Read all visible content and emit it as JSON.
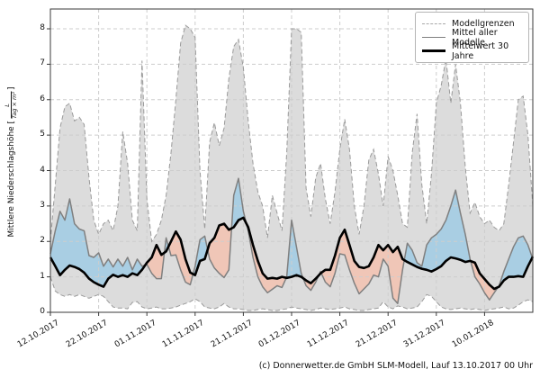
{
  "chart": {
    "footer": "(c) Donnerwetter.de GmbH SLM-Modell, Lauf 13.10.2017 00 Uhr",
    "ylabel": {
      "prefix": "Mittlere Niederschlagshöhe [",
      "frac_num": "L",
      "frac_den": "Tag × m²",
      "suffix": "]"
    },
    "legend": {
      "items": [
        {
          "label": "Modellgrenzen"
        },
        {
          "label": "Mittel aller Modelle"
        },
        {
          "label": "Mittelwert 30 Jahre"
        }
      ]
    },
    "colors": {
      "envelope_fill": "#dcdcdc",
      "envelope_edge": "#9a9a9a",
      "above_normal_fill": "#a3cce3",
      "below_normal_fill": "#f2c3b2",
      "model_mean_line": "#7f7f7f",
      "normal_line": "#000000",
      "grid": "#cdcdcd",
      "spine": "#3a3a3a"
    }
  },
  "chart_data": {
    "type": "area",
    "title": "",
    "xlabel": "",
    "ylabel": "Mittlere Niederschlagshöhe [L/(Tag × m²)]",
    "grid": "dashed-both-axes",
    "legend_position": "upper-right",
    "ylim": [
      0,
      8.56
    ],
    "y_ticks": [
      0,
      1,
      2,
      3,
      4,
      5,
      6,
      7,
      8
    ],
    "xlim_days": [
      0,
      100
    ],
    "x_tick_days": [
      0,
      10,
      20,
      30,
      40,
      50,
      60,
      70,
      80,
      90
    ],
    "x_tick_labels": [
      "12.10.2017",
      "22.10.2017",
      "01.11.2017",
      "11.11.2017",
      "21.11.2017",
      "01.12.2017",
      "11.12.2017",
      "21.12.2017",
      "31.12.2017",
      "10.01.2018"
    ],
    "x_resolution": "daily, day 0 = 12.10.2017, day 100 = 20.01.2018",
    "series": [
      {
        "name": "Modellgrenzen (oben)",
        "role": "upper-bound",
        "values": [
          2.0,
          3.6,
          5.2,
          5.8,
          5.9,
          5.4,
          5.5,
          5.3,
          3.8,
          2.6,
          2.2,
          2.5,
          2.6,
          2.3,
          3.0,
          5.1,
          4.2,
          2.6,
          2.3,
          7.1,
          3.2,
          2.0,
          2.2,
          2.6,
          3.3,
          4.5,
          6.0,
          7.6,
          8.1,
          8.0,
          7.75,
          4.0,
          2.35,
          4.8,
          5.35,
          4.7,
          5.2,
          6.6,
          7.5,
          7.7,
          6.9,
          5.4,
          4.2,
          3.4,
          3.0,
          2.1,
          3.3,
          2.8,
          2.3,
          4.5,
          8.0,
          8.0,
          7.9,
          3.5,
          2.7,
          3.8,
          4.2,
          3.2,
          2.5,
          3.4,
          4.6,
          5.45,
          4.6,
          3.0,
          2.2,
          3.0,
          4.3,
          4.6,
          3.9,
          3.0,
          4.4,
          4.0,
          3.3,
          2.5,
          2.4,
          4.5,
          5.6,
          3.6,
          2.5,
          3.9,
          5.9,
          6.4,
          7.15,
          5.9,
          7.0,
          5.9,
          4.1,
          2.8,
          3.1,
          2.7,
          2.5,
          2.6,
          2.4,
          2.3,
          2.5,
          3.6,
          4.8,
          6.0,
          6.1,
          5.0,
          3.0
        ]
      },
      {
        "name": "Modellgrenzen (unten)",
        "role": "lower-bound",
        "values": [
          1.0,
          0.6,
          0.5,
          0.45,
          0.5,
          0.45,
          0.5,
          0.45,
          0.4,
          0.45,
          0.5,
          0.45,
          0.3,
          0.15,
          0.12,
          0.12,
          0.1,
          0.28,
          0.3,
          0.15,
          0.1,
          0.12,
          0.15,
          0.1,
          0.1,
          0.12,
          0.15,
          0.2,
          0.25,
          0.3,
          0.38,
          0.3,
          0.15,
          0.12,
          0.1,
          0.15,
          0.25,
          0.15,
          0.1,
          0.1,
          0.08,
          0.05,
          0.05,
          0.08,
          0.1,
          0.08,
          0.05,
          0.05,
          0.08,
          0.1,
          0.15,
          0.12,
          0.1,
          0.08,
          0.05,
          0.08,
          0.12,
          0.1,
          0.08,
          0.1,
          0.12,
          0.15,
          0.1,
          0.08,
          0.05,
          0.05,
          0.08,
          0.1,
          0.12,
          0.3,
          0.15,
          0.1,
          0.18,
          0.15,
          0.1,
          0.12,
          0.15,
          0.3,
          0.5,
          0.45,
          0.3,
          0.15,
          0.1,
          0.08,
          0.1,
          0.12,
          0.1,
          0.08,
          0.1,
          0.08,
          0.05,
          0.08,
          0.1,
          0.12,
          0.15,
          0.1,
          0.12,
          0.2,
          0.3,
          0.35,
          0.3
        ]
      },
      {
        "name": "Mittel aller Modelle",
        "role": "model-mean",
        "values": [
          1.65,
          2.3,
          2.85,
          2.6,
          3.2,
          2.5,
          2.35,
          2.3,
          1.6,
          1.55,
          1.68,
          1.3,
          1.5,
          1.28,
          1.5,
          1.3,
          1.55,
          1.2,
          1.5,
          1.3,
          1.35,
          1.1,
          0.95,
          0.95,
          2.1,
          1.6,
          1.62,
          1.2,
          0.85,
          0.78,
          1.3,
          2.05,
          2.15,
          1.5,
          1.25,
          1.1,
          0.98,
          1.2,
          3.3,
          3.78,
          2.85,
          2.3,
          1.55,
          1.0,
          0.72,
          0.55,
          0.65,
          0.75,
          0.7,
          1.0,
          2.6,
          1.85,
          1.1,
          0.75,
          0.62,
          0.85,
          1.15,
          0.85,
          0.72,
          1.1,
          1.65,
          1.62,
          1.2,
          0.82,
          0.52,
          0.66,
          0.8,
          1.05,
          1.0,
          1.5,
          1.3,
          0.4,
          0.25,
          1.2,
          1.95,
          1.75,
          1.4,
          1.3,
          1.9,
          2.1,
          2.2,
          2.35,
          2.6,
          3.0,
          3.45,
          2.8,
          2.2,
          1.5,
          1.0,
          0.8,
          0.55,
          0.35,
          0.55,
          0.75,
          1.15,
          1.5,
          1.85,
          2.1,
          2.15,
          1.9,
          1.5
        ]
      },
      {
        "name": "Mittelwert 30 Jahre",
        "role": "climate-normal",
        "values": [
          1.55,
          1.3,
          1.05,
          1.2,
          1.32,
          1.28,
          1.22,
          1.12,
          0.95,
          0.85,
          0.78,
          0.72,
          0.95,
          1.06,
          1.0,
          1.05,
          1.0,
          1.1,
          1.05,
          1.2,
          1.4,
          1.55,
          1.9,
          1.62,
          1.72,
          2.0,
          2.28,
          2.05,
          1.5,
          1.12,
          1.05,
          1.45,
          1.5,
          1.95,
          2.1,
          2.45,
          2.5,
          2.33,
          2.4,
          2.6,
          2.67,
          2.4,
          1.9,
          1.45,
          1.1,
          0.95,
          0.97,
          0.95,
          1.0,
          0.97,
          1.0,
          1.05,
          1.0,
          0.9,
          0.82,
          0.95,
          1.1,
          1.2,
          1.2,
          1.6,
          2.1,
          2.33,
          1.9,
          1.45,
          1.28,
          1.25,
          1.3,
          1.55,
          1.9,
          1.75,
          1.9,
          1.7,
          1.85,
          1.5,
          1.42,
          1.35,
          1.28,
          1.23,
          1.2,
          1.15,
          1.22,
          1.3,
          1.45,
          1.55,
          1.52,
          1.48,
          1.42,
          1.45,
          1.4,
          1.1,
          0.94,
          0.78,
          0.66,
          0.72,
          0.9,
          1.0,
          1.0,
          1.02,
          1.0,
          1.3,
          1.57
        ]
      }
    ],
    "annotations": [
      "blue shading = Mittel aller Modelle above Mittelwert 30 Jahre",
      "red shading = Mittel aller Modelle below Mittelwert 30 Jahre",
      "gray band = Modellgrenzen (min/max of all models)"
    ]
  }
}
